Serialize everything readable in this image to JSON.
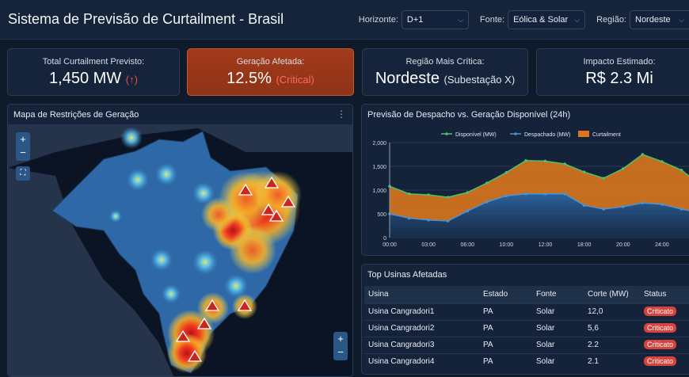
{
  "header": {
    "title": "Sistema de Previsão de Curtailment - Brasil",
    "filters": [
      {
        "label": "Horizonte:",
        "value": "D+1"
      },
      {
        "label": "Fonte:",
        "value": "Eólica & Solar"
      },
      {
        "label": "Região:",
        "value": "Nordeste"
      }
    ]
  },
  "kpis": [
    {
      "label": "Total Curtailment Previsto:",
      "value": "1,450 MW",
      "sub": "(↑)"
    },
    {
      "label": "Geração Afetada:",
      "value": "12.5%",
      "sub": "(Critical)"
    },
    {
      "label": "Região Mais Crítica:",
      "value": "Nordeste",
      "sub": "(Subestação X)"
    },
    {
      "label": "Impacto Estimado:",
      "value": "R$ 2.3 Mi",
      "sub": ""
    }
  ],
  "map": {
    "title": "Mapa de Restrições de Geração",
    "zoom_in": "+",
    "zoom_out": "−"
  },
  "table": {
    "title": "Top Usinas Afetadas",
    "columns": [
      "Usina",
      "Estado",
      "Fonte",
      "Corte (MW)",
      "Status"
    ],
    "rows": [
      [
        "Usina Cangradori1",
        "PA",
        "Solar",
        "12,0",
        "Criticato"
      ],
      [
        "Usina Cangradori2",
        "PA",
        "Solar",
        "5,6",
        "Criticato"
      ],
      [
        "Usina Cangradori3",
        "PA",
        "Solar",
        "2.2",
        "Criticato"
      ],
      [
        "Usina Cangradori4",
        "PA",
        "Solar",
        "2.1",
        "Criticato"
      ]
    ]
  },
  "colors": {
    "available": "#4cc26a",
    "dispatched": "#4b93d6",
    "curtailment": "#d9761e",
    "critical": "#d6433f"
  },
  "chart_data": {
    "type": "line",
    "title": "Previsão de Despacho vs. Geração Disponível (24h)",
    "x": [
      "00:00",
      "",
      "03:00",
      "",
      "06:00",
      "",
      "10:00",
      "",
      "12:00",
      "",
      "18:00",
      "",
      "20:00",
      "",
      "24:00",
      "",
      ""
    ],
    "series": [
      {
        "name": "Disponível (MW)",
        "values": [
          1080,
          920,
          900,
          850,
          950,
          1150,
          1370,
          1620,
          1610,
          1550,
          1380,
          1250,
          1450,
          1750,
          1600,
          1420,
          1100
        ]
      },
      {
        "name": "Despachado (MW)",
        "values": [
          500,
          410,
          370,
          350,
          560,
          750,
          880,
          920,
          920,
          920,
          680,
          600,
          650,
          730,
          700,
          600,
          520
        ]
      }
    ],
    "legend": [
      "Disponível (MW)",
      "Despachado (MW)",
      "Curtailment"
    ],
    "yticks": [
      "0",
      "500",
      "1,000",
      "1,500",
      "2,000"
    ],
    "ylim": [
      0,
      2000
    ],
    "legend_position": "top"
  }
}
